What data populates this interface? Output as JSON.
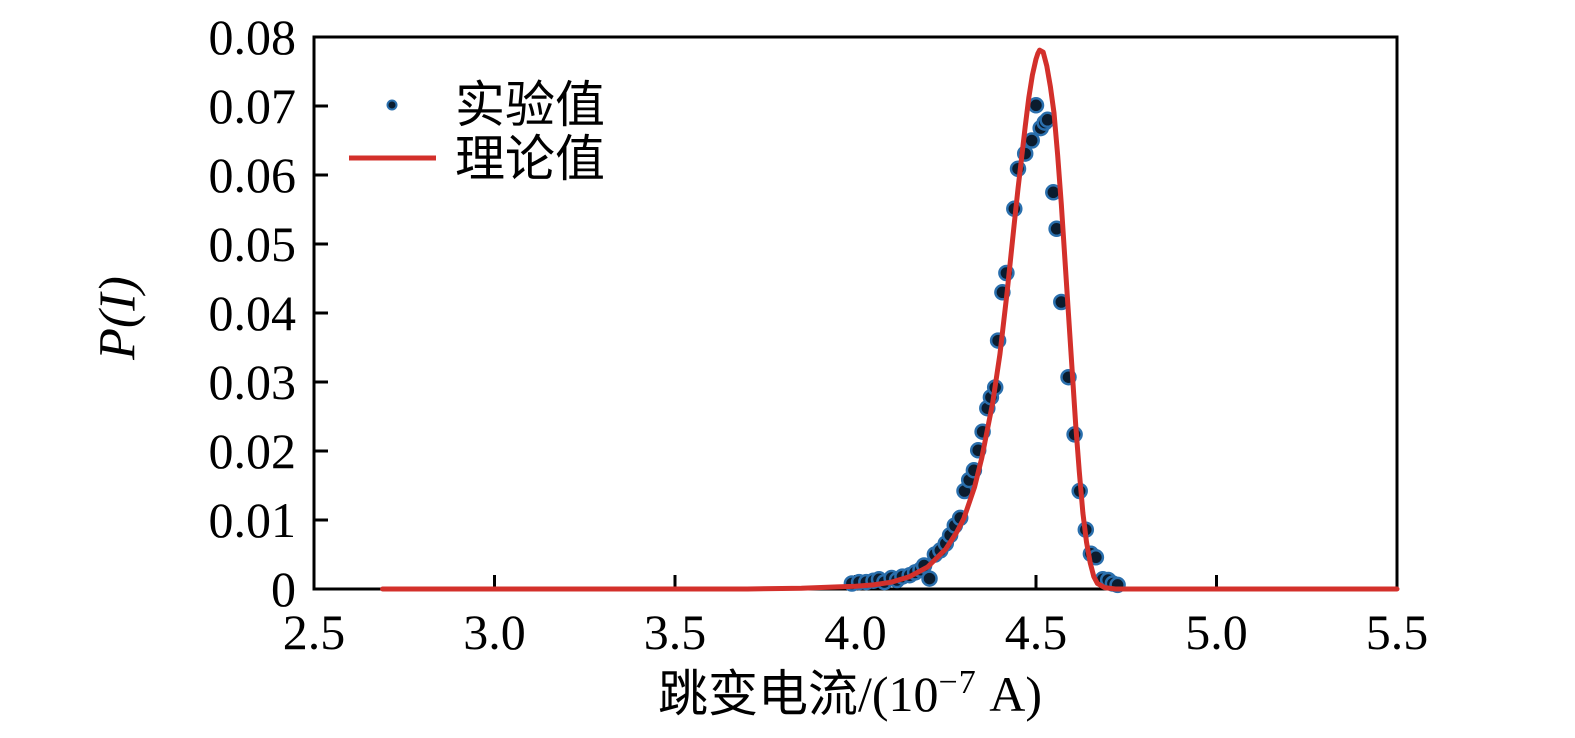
{
  "figure": {
    "background": "#ffffff",
    "axis_color": "#000000",
    "axis_stroke_width": 3
  },
  "legend": {
    "position": "upper-left-inside",
    "items": [
      {
        "label": "实验值",
        "marker": "dot"
      },
      {
        "label": "理论值",
        "marker": "line"
      }
    ]
  },
  "chart_data": {
    "type": "scatter",
    "title": "",
    "xlabel": "跳变电流/(10⁻⁷ A)",
    "xlabel_parts": {
      "prefix": "跳变电流/(10",
      "exponent": "−7",
      "suffix": " A)"
    },
    "ylabel": "P(I)",
    "xlim": [
      2.5,
      5.5
    ],
    "ylim": [
      0,
      0.08
    ],
    "grid": false,
    "legend_position": "upper-left-inside",
    "xticks": {
      "values": [
        2.5,
        3.0,
        3.5,
        4.0,
        4.5,
        5.0,
        5.5
      ],
      "labels": [
        "2.5",
        "3.0",
        "3.5",
        "4.0",
        "4.5",
        "5.0",
        "5.5"
      ]
    },
    "yticks": {
      "values": [
        0,
        0.01,
        0.02,
        0.03,
        0.04,
        0.05,
        0.06,
        0.07,
        0.08
      ],
      "labels": [
        "0",
        "0.01",
        "0.02",
        "0.03",
        "0.04",
        "0.05",
        "0.06",
        "0.07",
        "0.08"
      ]
    },
    "series": [
      {
        "name": "实验值",
        "type": "scatter",
        "marker": "dot",
        "color": "#0b1c2e",
        "edge_color": "#2a6fad",
        "marker_radius": 7,
        "points": [
          [
            3.99,
            0.0008
          ],
          [
            4.01,
            0.001
          ],
          [
            4.03,
            0.001
          ],
          [
            4.05,
            0.0012
          ],
          [
            4.065,
            0.0014
          ],
          [
            4.08,
            0.001
          ],
          [
            4.1,
            0.0016
          ],
          [
            4.115,
            0.0013
          ],
          [
            4.13,
            0.0018
          ],
          [
            4.15,
            0.002
          ],
          [
            4.165,
            0.0024
          ],
          [
            4.18,
            0.0028
          ],
          [
            4.19,
            0.0034
          ],
          [
            4.205,
            0.0015
          ],
          [
            4.22,
            0.005
          ],
          [
            4.235,
            0.0056
          ],
          [
            4.25,
            0.0066
          ],
          [
            4.262,
            0.0078
          ],
          [
            4.275,
            0.0092
          ],
          [
            4.29,
            0.0103
          ],
          [
            4.302,
            0.0142
          ],
          [
            4.315,
            0.0158
          ],
          [
            4.328,
            0.0172
          ],
          [
            4.34,
            0.0201
          ],
          [
            4.352,
            0.0228
          ],
          [
            4.365,
            0.0262
          ],
          [
            4.375,
            0.0278
          ],
          [
            4.387,
            0.0292
          ],
          [
            4.395,
            0.036
          ],
          [
            4.407,
            0.043
          ],
          [
            4.418,
            0.0458
          ],
          [
            4.44,
            0.0551
          ],
          [
            4.45,
            0.0609
          ],
          [
            4.47,
            0.0631
          ],
          [
            4.488,
            0.065
          ],
          [
            4.5,
            0.0701
          ],
          [
            4.513,
            0.0668
          ],
          [
            4.524,
            0.0676
          ],
          [
            4.532,
            0.068
          ],
          [
            4.548,
            0.0575
          ],
          [
            4.557,
            0.0522
          ],
          [
            4.57,
            0.0416
          ],
          [
            4.59,
            0.0307
          ],
          [
            4.607,
            0.0224
          ],
          [
            4.621,
            0.0142
          ],
          [
            4.638,
            0.0086
          ],
          [
            4.652,
            0.0051
          ],
          [
            4.666,
            0.0046
          ],
          [
            4.685,
            0.0014
          ],
          [
            4.7,
            0.0013
          ],
          [
            4.713,
            0.0008
          ],
          [
            4.726,
            0.0006
          ]
        ]
      },
      {
        "name": "理论值",
        "type": "line",
        "color": "#d3302b",
        "line_width": 5,
        "points": [
          [
            2.69,
            0
          ],
          [
            3.0,
            0
          ],
          [
            3.4,
            0
          ],
          [
            3.7,
            0
          ],
          [
            3.85,
            0.0001
          ],
          [
            3.95,
            0.0003
          ],
          [
            4.0,
            0.0004
          ],
          [
            4.05,
            0.0006
          ],
          [
            4.1,
            0.001
          ],
          [
            4.15,
            0.0018
          ],
          [
            4.2,
            0.0032
          ],
          [
            4.25,
            0.0058
          ],
          [
            4.28,
            0.0082
          ],
          [
            4.3,
            0.0102
          ],
          [
            4.33,
            0.0148
          ],
          [
            4.35,
            0.019
          ],
          [
            4.38,
            0.027
          ],
          [
            4.4,
            0.034
          ],
          [
            4.42,
            0.043
          ],
          [
            4.44,
            0.053
          ],
          [
            4.45,
            0.058
          ],
          [
            4.46,
            0.0625
          ],
          [
            4.47,
            0.067
          ],
          [
            4.48,
            0.0712
          ],
          [
            4.49,
            0.0745
          ],
          [
            4.5,
            0.0768
          ],
          [
            4.505,
            0.0776
          ],
          [
            4.51,
            0.0781
          ],
          [
            4.52,
            0.0778
          ],
          [
            4.53,
            0.0758
          ],
          [
            4.54,
            0.0728
          ],
          [
            4.55,
            0.069
          ],
          [
            4.56,
            0.0628
          ],
          [
            4.57,
            0.0558
          ],
          [
            4.58,
            0.0478
          ],
          [
            4.59,
            0.0398
          ],
          [
            4.6,
            0.0318
          ],
          [
            4.61,
            0.0238
          ],
          [
            4.62,
            0.017
          ],
          [
            4.63,
            0.011
          ],
          [
            4.64,
            0.0068
          ],
          [
            4.65,
            0.0038
          ],
          [
            4.66,
            0.0018
          ],
          [
            4.67,
            0.0008
          ],
          [
            4.69,
            0.0002
          ],
          [
            4.72,
            0
          ],
          [
            5.0,
            0
          ],
          [
            5.5,
            0
          ]
        ]
      }
    ]
  }
}
